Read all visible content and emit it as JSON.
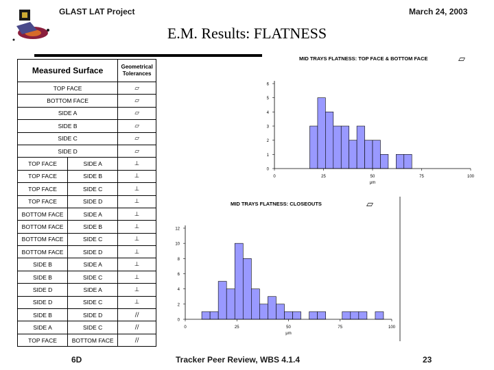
{
  "header": {
    "project": "GLAST LAT Project",
    "date": "March 24, 2003"
  },
  "title": "E.M. Results: FLATNESS",
  "table": {
    "col_surface": "Measured Surface",
    "col_tolerance": "Geometrical Tolerances",
    "rows": [
      {
        "a": "TOP FACE",
        "b": "",
        "sym": "▱"
      },
      {
        "a": "BOTTOM FACE",
        "b": "",
        "sym": "▱"
      },
      {
        "a": "SIDE A",
        "b": "",
        "sym": "▱"
      },
      {
        "a": "SIDE B",
        "b": "",
        "sym": "▱"
      },
      {
        "a": "SIDE C",
        "b": "",
        "sym": "▱"
      },
      {
        "a": "SIDE D",
        "b": "",
        "sym": "▱"
      },
      {
        "a": "TOP FACE",
        "b": "SIDE A",
        "sym": "⊥"
      },
      {
        "a": "TOP FACE",
        "b": "SIDE B",
        "sym": "⊥"
      },
      {
        "a": "TOP FACE",
        "b": "SIDE C",
        "sym": "⊥"
      },
      {
        "a": "TOP FACE",
        "b": "SIDE D",
        "sym": "⊥"
      },
      {
        "a": "BOTTOM FACE",
        "b": "SIDE A",
        "sym": "⊥"
      },
      {
        "a": "BOTTOM FACE",
        "b": "SIDE B",
        "sym": "⊥"
      },
      {
        "a": "BOTTOM FACE",
        "b": "SIDE C",
        "sym": "⊥"
      },
      {
        "a": "BOTTOM FACE",
        "b": "SIDE D",
        "sym": "⊥"
      },
      {
        "a": "SIDE B",
        "b": "SIDE A",
        "sym": "⊥"
      },
      {
        "a": "SIDE B",
        "b": "SIDE C",
        "sym": "⊥"
      },
      {
        "a": "SIDE D",
        "b": "SIDE A",
        "sym": "⊥"
      },
      {
        "a": "SIDE D",
        "b": "SIDE C",
        "sym": "⊥"
      },
      {
        "a": "SIDE B",
        "b": "SIDE D",
        "sym": "//"
      },
      {
        "a": "SIDE A",
        "b": "SIDE C",
        "sym": "//"
      },
      {
        "a": "TOP FACE",
        "b": "BOTTOM FACE",
        "sym": "//"
      }
    ]
  },
  "chart_data": [
    {
      "type": "bar",
      "title": "MID TRAYS FLATNESS: TOP FACE & BOTTOM FACE",
      "title_symbol": "▱",
      "xlabel": "μm",
      "ylabel": "",
      "xlim": [
        0,
        100
      ],
      "ylim": [
        0,
        6
      ],
      "xticks": [
        0,
        25,
        50,
        75,
        100
      ],
      "yticks": [
        0,
        1,
        2,
        3,
        4,
        5,
        6
      ],
      "bins": [
        {
          "x0": 18,
          "x1": 22,
          "value": 3
        },
        {
          "x0": 22,
          "x1": 26,
          "value": 5
        },
        {
          "x0": 26,
          "x1": 30,
          "value": 4
        },
        {
          "x0": 30,
          "x1": 34,
          "value": 3
        },
        {
          "x0": 34,
          "x1": 38,
          "value": 3
        },
        {
          "x0": 38,
          "x1": 42,
          "value": 2
        },
        {
          "x0": 42,
          "x1": 46,
          "value": 3
        },
        {
          "x0": 46,
          "x1": 50,
          "value": 2
        },
        {
          "x0": 50,
          "x1": 54,
          "value": 2
        },
        {
          "x0": 54,
          "x1": 58,
          "value": 1
        },
        {
          "x0": 62,
          "x1": 66,
          "value": 1
        },
        {
          "x0": 66,
          "x1": 70,
          "value": 1
        }
      ]
    },
    {
      "type": "bar",
      "title": "MID TRAYS FLATNESS: CLOSEOUTS",
      "title_symbol": "▱",
      "xlabel": "μm",
      "ylabel": "",
      "xlim": [
        0,
        100
      ],
      "ylim": [
        0,
        12
      ],
      "xticks": [
        0,
        25,
        50,
        75,
        100
      ],
      "yticks": [
        0,
        2,
        4,
        6,
        8,
        10,
        12
      ],
      "bins": [
        {
          "x0": 8,
          "x1": 12,
          "value": 1
        },
        {
          "x0": 12,
          "x1": 16,
          "value": 1
        },
        {
          "x0": 16,
          "x1": 20,
          "value": 5
        },
        {
          "x0": 20,
          "x1": 24,
          "value": 4
        },
        {
          "x0": 24,
          "x1": 28,
          "value": 10
        },
        {
          "x0": 28,
          "x1": 32,
          "value": 8
        },
        {
          "x0": 32,
          "x1": 36,
          "value": 4
        },
        {
          "x0": 36,
          "x1": 40,
          "value": 2
        },
        {
          "x0": 40,
          "x1": 44,
          "value": 3
        },
        {
          "x0": 44,
          "x1": 48,
          "value": 2
        },
        {
          "x0": 48,
          "x1": 52,
          "value": 1
        },
        {
          "x0": 52,
          "x1": 56,
          "value": 1
        },
        {
          "x0": 60,
          "x1": 64,
          "value": 1
        },
        {
          "x0": 64,
          "x1": 68,
          "value": 1
        },
        {
          "x0": 76,
          "x1": 80,
          "value": 1
        },
        {
          "x0": 80,
          "x1": 84,
          "value": 1
        },
        {
          "x0": 84,
          "x1": 88,
          "value": 1
        },
        {
          "x0": 92,
          "x1": 96,
          "value": 1
        }
      ]
    }
  ],
  "footer": {
    "left": "6D",
    "center": "Tracker Peer Review, WBS 4.1.4",
    "page": "23"
  }
}
